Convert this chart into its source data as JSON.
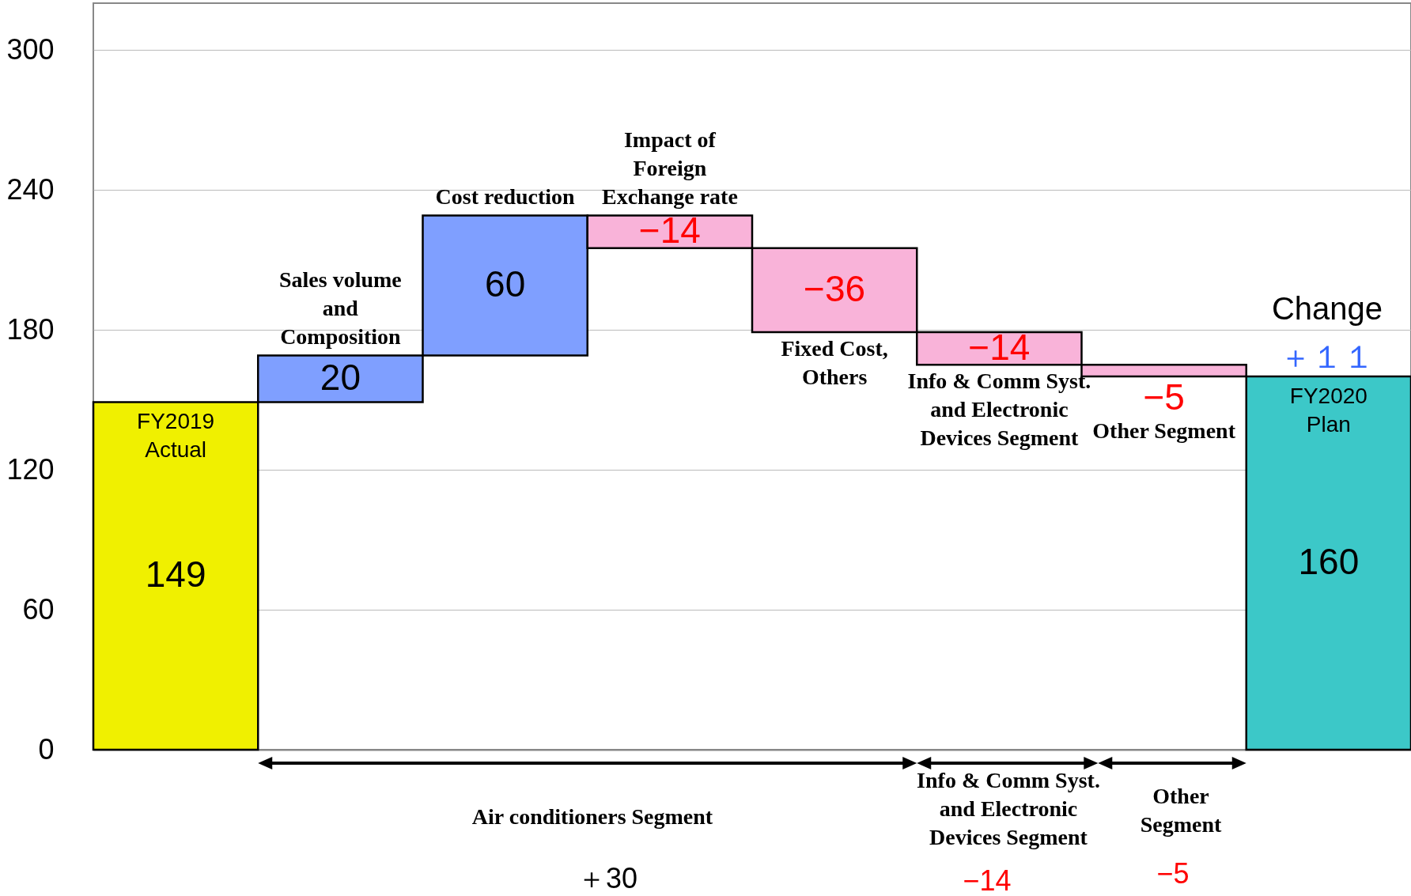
{
  "chart_data": {
    "type": "bar",
    "categories": [
      "FY2019 Actual",
      "Sales volume and Composition",
      "Cost reduction",
      "Impact of Foreign Exchange rate",
      "Fixed Cost, Others",
      "Info & Comm Syst. and Electronic Devices Segment",
      "Other Segment",
      "FY2020 Plan"
    ],
    "values": [
      149,
      20,
      60,
      -14,
      -36,
      -14,
      -5,
      160
    ],
    "base": [
      0,
      149,
      169,
      229,
      215,
      179,
      165,
      0
    ],
    "colors": [
      "#f0f000",
      "#7f9fff",
      "#7f9fff",
      "#f9b3d9",
      "#f9b3d9",
      "#f9b3d9",
      "#f9b3d9",
      "#3cc8c8"
    ],
    "data_labels": true,
    "ylim": [
      0,
      320
    ],
    "yticks": [
      0,
      60,
      120,
      180,
      240,
      300
    ],
    "grid": "y",
    "tick_labels": "y",
    "annotations": [
      "Change",
      "＋１１",
      "Air conditioners Segment",
      "＋30",
      "Info & Comm Syst. and Electronic Devices Segment",
      "−14",
      "Other Segment",
      "−5"
    ]
  }
}
